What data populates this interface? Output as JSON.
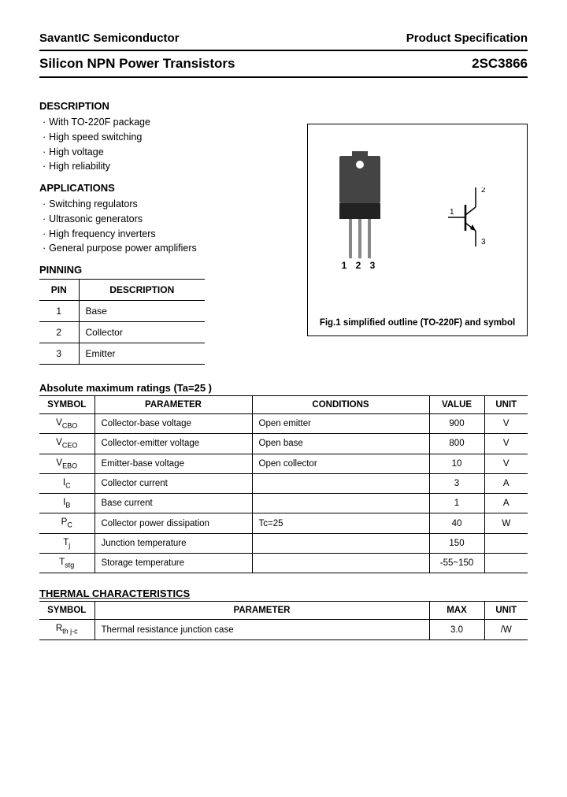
{
  "header": {
    "company": "SavantIC Semiconductor",
    "spec": "Product Specification"
  },
  "title": {
    "left": "Silicon NPN Power Transistors",
    "right": "2SC3866"
  },
  "description": {
    "heading": "DESCRIPTION",
    "items": [
      "With TO-220F package",
      "High speed switching",
      "High voltage",
      "High reliability"
    ]
  },
  "applications": {
    "heading": "APPLICATIONS",
    "items": [
      "Switching regulators",
      "Ultrasonic generators",
      "High frequency inverters",
      "General purpose power amplifiers"
    ]
  },
  "pinning": {
    "heading": "PINNING",
    "cols": [
      "PIN",
      "DESCRIPTION"
    ],
    "rows": [
      [
        "1",
        "Base"
      ],
      [
        "2",
        "Collector"
      ],
      [
        "3",
        "Emitter"
      ]
    ]
  },
  "figure": {
    "caption": "Fig.1 simplified outline (TO-220F) and symbol",
    "lead_nums": "1 2 3",
    "sym_labels": {
      "t": "2",
      "l": "1",
      "b": "3"
    },
    "colors": {
      "body": "#444444",
      "step": "#222222",
      "lead": "#888888"
    }
  },
  "ratings": {
    "heading": "Absolute maximum ratings (Ta=25 )",
    "cols": [
      "SYMBOL",
      "PARAMETER",
      "CONDITIONS",
      "VALUE",
      "UNIT"
    ],
    "rows": [
      {
        "sym": "V",
        "sub": "CBO",
        "param": "Collector-base voltage",
        "cond": "Open emitter",
        "val": "900",
        "unit": "V"
      },
      {
        "sym": "V",
        "sub": "CEO",
        "param": "Collector-emitter voltage",
        "cond": "Open base",
        "val": "800",
        "unit": "V"
      },
      {
        "sym": "V",
        "sub": "EBO",
        "param": "Emitter-base voltage",
        "cond": "Open collector",
        "val": "10",
        "unit": "V"
      },
      {
        "sym": "I",
        "sub": "C",
        "param": "Collector current",
        "cond": "",
        "val": "3",
        "unit": "A"
      },
      {
        "sym": "I",
        "sub": "B",
        "param": "Base current",
        "cond": "",
        "val": "1",
        "unit": "A"
      },
      {
        "sym": "P",
        "sub": "C",
        "param": "Collector power dissipation",
        "cond": "Tc=25 ",
        "val": "40",
        "unit": "W"
      },
      {
        "sym": "T",
        "sub": "j",
        "param": "Junction temperature",
        "cond": "",
        "val": "150",
        "unit": ""
      },
      {
        "sym": "T",
        "sub": "stg",
        "param": "Storage temperature",
        "cond": "",
        "val": "-55~150",
        "unit": ""
      }
    ]
  },
  "thermal": {
    "heading": "THERMAL CHARACTERISTICS",
    "cols": [
      "SYMBOL",
      "PARAMETER",
      "MAX",
      "UNIT"
    ],
    "rows": [
      {
        "sym": "R",
        "sub": "th j-c",
        "param": "Thermal resistance junction case",
        "max": "3.0",
        "unit": "/W"
      }
    ]
  }
}
